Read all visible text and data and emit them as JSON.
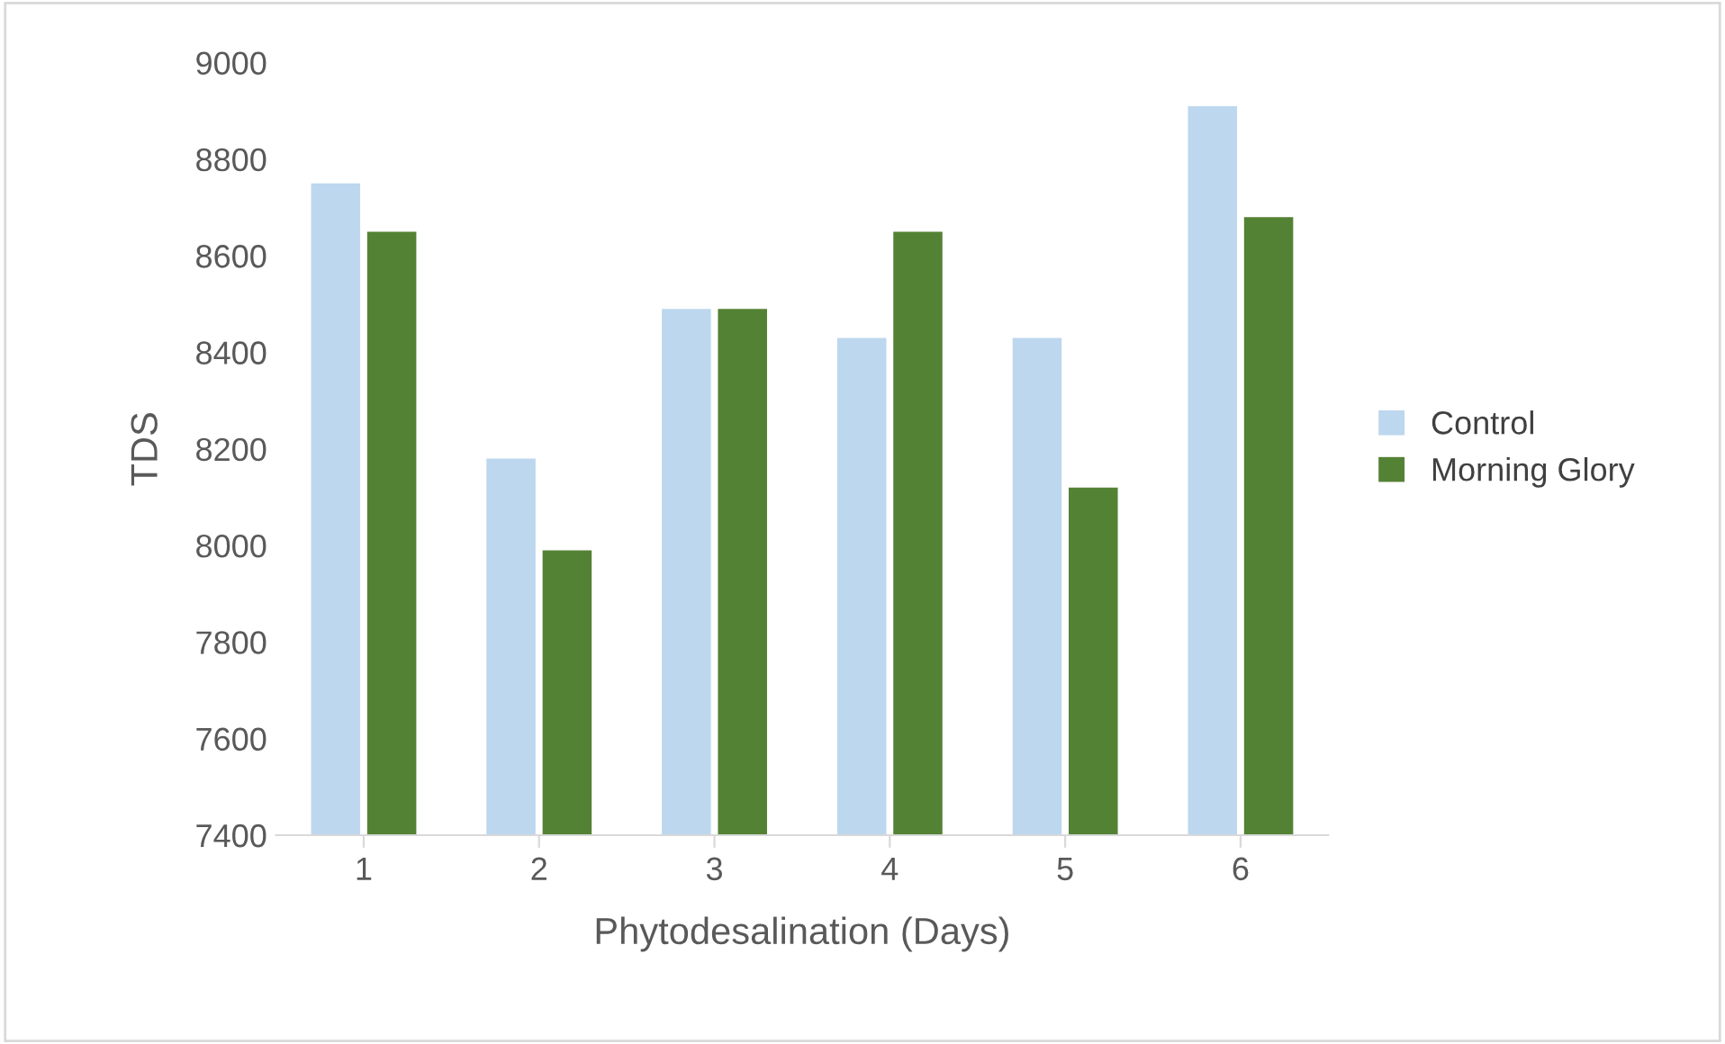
{
  "chart_data": {
    "type": "bar",
    "xlabel": "Phytodesalination (Days)",
    "ylabel": "TDS",
    "categories": [
      "1",
      "2",
      "3",
      "4",
      "5",
      "6"
    ],
    "series": [
      {
        "name": "Control",
        "color": "#bdd7ee",
        "values": [
          8750,
          8180,
          8490,
          8430,
          8430,
          8910
        ]
      },
      {
        "name": "Morning Glory",
        "color": "#548235",
        "values": [
          8650,
          7990,
          8490,
          8650,
          8120,
          8680
        ]
      }
    ],
    "ylim": [
      7400,
      9000
    ],
    "yticks": [
      7400,
      7600,
      7800,
      8000,
      8200,
      8400,
      8600,
      8800,
      9000
    ],
    "grid": false,
    "legend": "right"
  }
}
